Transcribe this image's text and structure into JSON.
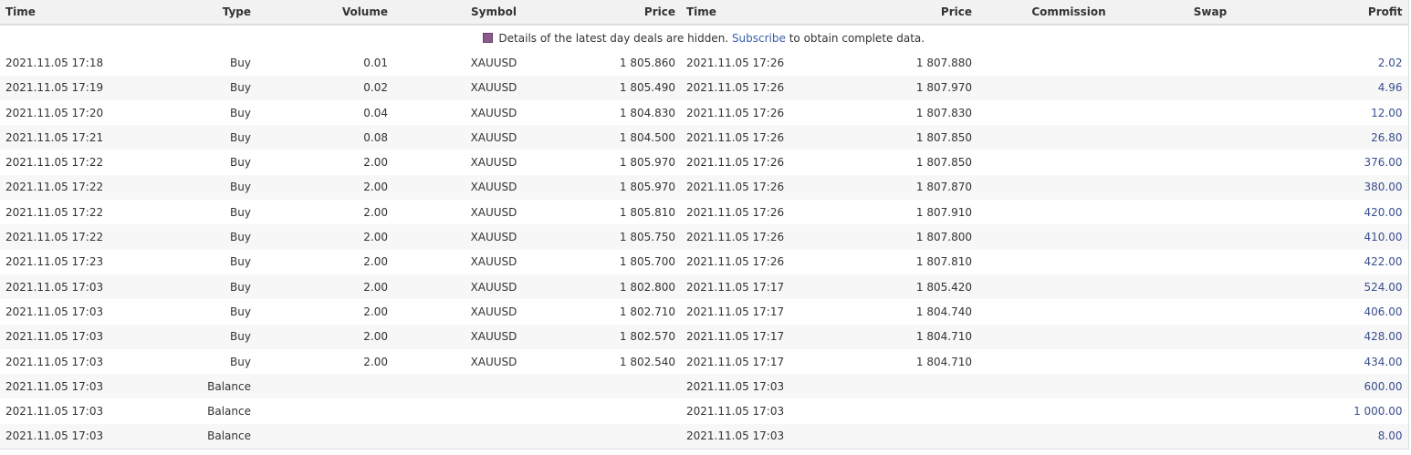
{
  "headers": [
    "Time",
    "Type",
    "Volume",
    "Symbol",
    "Price",
    "Time",
    "Price",
    "Commission",
    "Swap",
    "Profit"
  ],
  "notice": {
    "icon": "lock-icon",
    "text_before": "Details of the latest day deals are hidden. ",
    "link": "Subscribe",
    "text_after": " to obtain complete data."
  },
  "colors": {
    "profit": "#3a4f8f",
    "link": "#3a5fa8"
  },
  "rows": [
    [
      "2021.11.05 17:18",
      "Buy",
      "0.01",
      "XAUUSD",
      "1 805.860",
      "2021.11.05 17:26",
      "1 807.880",
      "",
      "",
      "2.02"
    ],
    [
      "2021.11.05 17:19",
      "Buy",
      "0.02",
      "XAUUSD",
      "1 805.490",
      "2021.11.05 17:26",
      "1 807.970",
      "",
      "",
      "4.96"
    ],
    [
      "2021.11.05 17:20",
      "Buy",
      "0.04",
      "XAUUSD",
      "1 804.830",
      "2021.11.05 17:26",
      "1 807.830",
      "",
      "",
      "12.00"
    ],
    [
      "2021.11.05 17:21",
      "Buy",
      "0.08",
      "XAUUSD",
      "1 804.500",
      "2021.11.05 17:26",
      "1 807.850",
      "",
      "",
      "26.80"
    ],
    [
      "2021.11.05 17:22",
      "Buy",
      "2.00",
      "XAUUSD",
      "1 805.970",
      "2021.11.05 17:26",
      "1 807.850",
      "",
      "",
      "376.00"
    ],
    [
      "2021.11.05 17:22",
      "Buy",
      "2.00",
      "XAUUSD",
      "1 805.970",
      "2021.11.05 17:26",
      "1 807.870",
      "",
      "",
      "380.00"
    ],
    [
      "2021.11.05 17:22",
      "Buy",
      "2.00",
      "XAUUSD",
      "1 805.810",
      "2021.11.05 17:26",
      "1 807.910",
      "",
      "",
      "420.00"
    ],
    [
      "2021.11.05 17:22",
      "Buy",
      "2.00",
      "XAUUSD",
      "1 805.750",
      "2021.11.05 17:26",
      "1 807.800",
      "",
      "",
      "410.00"
    ],
    [
      "2021.11.05 17:23",
      "Buy",
      "2.00",
      "XAUUSD",
      "1 805.700",
      "2021.11.05 17:26",
      "1 807.810",
      "",
      "",
      "422.00"
    ],
    [
      "2021.11.05 17:03",
      "Buy",
      "2.00",
      "XAUUSD",
      "1 802.800",
      "2021.11.05 17:17",
      "1 805.420",
      "",
      "",
      "524.00"
    ],
    [
      "2021.11.05 17:03",
      "Buy",
      "2.00",
      "XAUUSD",
      "1 802.710",
      "2021.11.05 17:17",
      "1 804.740",
      "",
      "",
      "406.00"
    ],
    [
      "2021.11.05 17:03",
      "Buy",
      "2.00",
      "XAUUSD",
      "1 802.570",
      "2021.11.05 17:17",
      "1 804.710",
      "",
      "",
      "428.00"
    ],
    [
      "2021.11.05 17:03",
      "Buy",
      "2.00",
      "XAUUSD",
      "1 802.540",
      "2021.11.05 17:17",
      "1 804.710",
      "",
      "",
      "434.00"
    ],
    [
      "2021.11.05 17:03",
      "Balance",
      "",
      "",
      "",
      "2021.11.05 17:03",
      "",
      "",
      "",
      "600.00"
    ],
    [
      "2021.11.05 17:03",
      "Balance",
      "",
      "",
      "",
      "2021.11.05 17:03",
      "",
      "",
      "",
      "1 000.00"
    ],
    [
      "2021.11.05 17:03",
      "Balance",
      "",
      "",
      "",
      "2021.11.05 17:03",
      "",
      "",
      "",
      "8.00"
    ]
  ]
}
